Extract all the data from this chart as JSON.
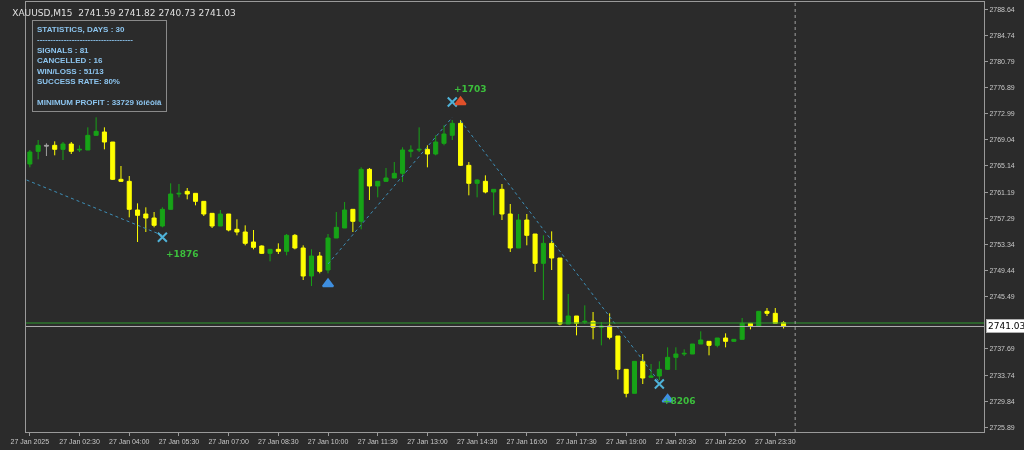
{
  "chart_data": {
    "type": "candlestick",
    "title": "XAUUSD,M15  2741.59 2741.82 2740.73 2741.03",
    "x": [
      "2025-01-27T01:00",
      "2025-01-27T01:15",
      "2025-01-27T01:30",
      "2025-01-27T01:45",
      "2025-01-27T02:00",
      "2025-01-27T02:15",
      "2025-01-27T02:30",
      "2025-01-27T02:45",
      "2025-01-27T03:00",
      "2025-01-27T03:15",
      "2025-01-27T03:30",
      "2025-01-27T03:45",
      "2025-01-27T04:00",
      "2025-01-27T04:15",
      "2025-01-27T04:30",
      "2025-01-27T04:45",
      "2025-01-27T05:00",
      "2025-01-27T05:15",
      "2025-01-27T05:30",
      "2025-01-27T05:45",
      "2025-01-27T06:00",
      "2025-01-27T06:15",
      "2025-01-27T06:30",
      "2025-01-27T06:45",
      "2025-01-27T07:00",
      "2025-01-27T07:15",
      "2025-01-27T07:30",
      "2025-01-27T07:45",
      "2025-01-27T08:00",
      "2025-01-27T08:15",
      "2025-01-27T08:30",
      "2025-01-27T08:45",
      "2025-01-27T09:00",
      "2025-01-27T09:15",
      "2025-01-27T09:30",
      "2025-01-27T09:45",
      "2025-01-27T10:00",
      "2025-01-27T10:15",
      "2025-01-27T10:30",
      "2025-01-27T10:45",
      "2025-01-27T11:00",
      "2025-01-27T11:15",
      "2025-01-27T11:30",
      "2025-01-27T11:45",
      "2025-01-27T12:00",
      "2025-01-27T12:15",
      "2025-01-27T12:30",
      "2025-01-27T12:45",
      "2025-01-27T13:00",
      "2025-01-27T13:15",
      "2025-01-27T13:30",
      "2025-01-27T13:45",
      "2025-01-27T14:00",
      "2025-01-27T14:15",
      "2025-01-27T14:30",
      "2025-01-27T14:45",
      "2025-01-27T15:00",
      "2025-01-27T15:15",
      "2025-01-27T15:30",
      "2025-01-27T15:45",
      "2025-01-27T16:00",
      "2025-01-27T16:15",
      "2025-01-27T16:30",
      "2025-01-27T16:45",
      "2025-01-27T17:00",
      "2025-01-27T17:15",
      "2025-01-27T17:30",
      "2025-01-27T17:45",
      "2025-01-27T18:00",
      "2025-01-27T18:15",
      "2025-01-27T18:30",
      "2025-01-27T18:45",
      "2025-01-27T19:00",
      "2025-01-27T19:15",
      "2025-01-27T19:30",
      "2025-01-27T19:45",
      "2025-01-27T20:00",
      "2025-01-27T20:15",
      "2025-01-27T20:30",
      "2025-01-27T20:45",
      "2025-01-27T21:00",
      "2025-01-27T21:15",
      "2025-01-27T21:30",
      "2025-01-27T21:45",
      "2025-01-27T22:00",
      "2025-01-27T22:15",
      "2025-01-27T22:30",
      "2025-01-27T22:45",
      "2025-01-27T23:00",
      "2025-01-27T23:15",
      "2025-01-27T23:30",
      "2025-01-27T23:45"
    ],
    "colors": [
      "#17a317",
      "#17a317",
      "#a0a0a0",
      "#ffff00",
      "#17a317",
      "#ffff00",
      "#17a317",
      "#17a317",
      "#17a317",
      "#ffff00",
      "#ffff00",
      "#ffff00",
      "#ffff00",
      "#ffff00",
      "#ffff00",
      "#ffff00",
      "#17a317",
      "#17a317",
      "#17a317",
      "#ffff00",
      "#ffff00",
      "#ffff00",
      "#ffff00",
      "#17a317",
      "#ffff00",
      "#ffff00",
      "#ffff00",
      "#ffff00",
      "#ffff00",
      "#17a317",
      "#ffff00",
      "#17a317",
      "#ffff00",
      "#ffff00",
      "#17a317",
      "#ffff00",
      "#17a317",
      "#17a317",
      "#17a317",
      "#ffff00",
      "#17a317",
      "#ffff00",
      "#17a317",
      "#17a317",
      "#17a317",
      "#17a317",
      "#17a317",
      "#17a317",
      "#ffff00",
      "#17a317",
      "#17a317",
      "#17a317",
      "#ffff00",
      "#ffff00",
      "#17a317",
      "#ffff00",
      "#17a317",
      "#ffff00",
      "#ffff00",
      "#17a317",
      "#ffff00",
      "#ffff00",
      "#17a317",
      "#ffff00",
      "#ffff00",
      "#17a317",
      "#ffff00",
      "#17a317",
      "#ffff00",
      "#17a317",
      "#ffff00",
      "#ffff00",
      "#ffff00",
      "#17a317",
      "#ffff00",
      "#17a317",
      "#17a317",
      "#17a317",
      "#17a317",
      "#17a317",
      "#17a317",
      "#17a317",
      "#ffff00",
      "#17a317",
      "#ffff00",
      "#17a317",
      "#17a317",
      "#ffff00",
      "#17a317",
      "#ffff00",
      "#ffff00",
      "#ffff00"
    ],
    "ohlc": [
      [
        2765.4,
        2767.5,
        2764.9,
        2767.2
      ],
      [
        2767.3,
        2769.0,
        2766.1,
        2768.2
      ],
      [
        2768.2,
        2768.5,
        2766.6,
        2768.1
      ],
      [
        2768.2,
        2768.8,
        2766.7,
        2767.6
      ],
      [
        2767.6,
        2768.7,
        2766.0,
        2768.4
      ],
      [
        2768.4,
        2768.7,
        2766.9,
        2767.3
      ],
      [
        2767.5,
        2768.2,
        2767.2,
        2767.6
      ],
      [
        2767.5,
        2770.9,
        2767.5,
        2769.7
      ],
      [
        2769.7,
        2772.4,
        2769.7,
        2770.3
      ],
      [
        2770.2,
        2770.9,
        2767.6,
        2768.7
      ],
      [
        2768.7,
        2768.7,
        2763.0,
        2763.1
      ],
      [
        2763.1,
        2765.1,
        2762.7,
        2762.8
      ],
      [
        2762.8,
        2763.6,
        2757.4,
        2758.6
      ],
      [
        2758.5,
        2759.5,
        2753.7,
        2757.7
      ],
      [
        2757.9,
        2758.9,
        2755.2,
        2757.3
      ],
      [
        2757.3,
        2758.2,
        2755.9,
        2756.2
      ],
      [
        2756.1,
        2758.9,
        2755.9,
        2758.6
      ],
      [
        2758.6,
        2762.5,
        2758.6,
        2760.9
      ],
      [
        2760.9,
        2762.4,
        2760.4,
        2761.0
      ],
      [
        2761.3,
        2761.8,
        2760.1,
        2760.9
      ],
      [
        2761.0,
        2761.0,
        2759.2,
        2759.8
      ],
      [
        2759.8,
        2759.8,
        2757.6,
        2757.9
      ],
      [
        2758.0,
        2758.0,
        2755.8,
        2756.1
      ],
      [
        2756.1,
        2758.5,
        2756.1,
        2757.9
      ],
      [
        2757.9,
        2757.9,
        2755.3,
        2755.5
      ],
      [
        2755.6,
        2757.1,
        2754.7,
        2755.2
      ],
      [
        2755.2,
        2756.2,
        2753.2,
        2753.5
      ],
      [
        2753.7,
        2755.5,
        2752.6,
        2752.9
      ],
      [
        2753.1,
        2753.2,
        2751.9,
        2752.0
      ],
      [
        2752.0,
        2752.6,
        2750.8,
        2752.6
      ],
      [
        2752.6,
        2753.5,
        2751.9,
        2752.3
      ],
      [
        2752.3,
        2754.9,
        2751.7,
        2754.7
      ],
      [
        2754.7,
        2754.9,
        2752.6,
        2752.8
      ],
      [
        2752.8,
        2753.2,
        2748.0,
        2748.6
      ],
      [
        2748.6,
        2752.6,
        2747.1,
        2751.6
      ],
      [
        2751.6,
        2752.2,
        2749.0,
        2749.3
      ],
      [
        2749.5,
        2754.9,
        2749.0,
        2754.3
      ],
      [
        2754.3,
        2758.2,
        2754.3,
        2755.9
      ],
      [
        2755.8,
        2759.7,
        2755.8,
        2758.5
      ],
      [
        2758.6,
        2758.6,
        2755.2,
        2756.8
      ],
      [
        2756.8,
        2764.9,
        2755.6,
        2764.6
      ],
      [
        2764.6,
        2764.8,
        2760.0,
        2762.1
      ],
      [
        2762.1,
        2762.8,
        2760.4,
        2762.8
      ],
      [
        2762.8,
        2764.8,
        2762.7,
        2763.3
      ],
      [
        2763.3,
        2765.7,
        2763.3,
        2764.0
      ],
      [
        2764.0,
        2767.9,
        2762.7,
        2767.5
      ],
      [
        2767.3,
        2768.2,
        2766.4,
        2767.5
      ],
      [
        2767.5,
        2770.9,
        2767.2,
        2767.6
      ],
      [
        2767.6,
        2768.2,
        2764.9,
        2766.9
      ],
      [
        2766.9,
        2769.7,
        2766.7,
        2768.7
      ],
      [
        2768.5,
        2771.2,
        2768.2,
        2769.9
      ],
      [
        2769.7,
        2772.0,
        2769.0,
        2771.5
      ],
      [
        2771.5,
        2772.0,
        2765.1,
        2765.2
      ],
      [
        2765.2,
        2765.7,
        2760.7,
        2762.5
      ],
      [
        2762.5,
        2763.1,
        2760.4,
        2763.0
      ],
      [
        2762.8,
        2763.7,
        2761.0,
        2761.2
      ],
      [
        2761.2,
        2761.6,
        2757.7,
        2761.6
      ],
      [
        2761.6,
        2762.4,
        2757.0,
        2757.9
      ],
      [
        2757.9,
        2759.4,
        2752.2,
        2752.8
      ],
      [
        2752.8,
        2757.9,
        2752.8,
        2757.0
      ],
      [
        2757.0,
        2757.9,
        2753.2,
        2754.7
      ],
      [
        2754.9,
        2754.9,
        2749.2,
        2750.5
      ],
      [
        2750.5,
        2754.7,
        2745.0,
        2753.5
      ],
      [
        2753.5,
        2755.3,
        2749.5,
        2751.3
      ],
      [
        2751.3,
        2751.3,
        2741.2,
        2741.4
      ],
      [
        2741.4,
        2745.9,
        2741.4,
        2742.6
      ],
      [
        2742.6,
        2742.6,
        2739.7,
        2741.5
      ],
      [
        2741.7,
        2744.2,
        2741.4,
        2741.8
      ],
      [
        2741.8,
        2743.2,
        2739.1,
        2740.9
      ],
      [
        2740.9,
        2741.7,
        2738.2,
        2741.1
      ],
      [
        2741.1,
        2743.0,
        2739.1,
        2739.4
      ],
      [
        2739.6,
        2739.6,
        2733.1,
        2734.6
      ],
      [
        2734.6,
        2734.6,
        2730.4,
        2731.0
      ],
      [
        2731.0,
        2735.8,
        2731.0,
        2735.8
      ],
      [
        2735.8,
        2736.9,
        2732.4,
        2733.3
      ],
      [
        2733.4,
        2735.4,
        2733.4,
        2733.6
      ],
      [
        2733.6,
        2735.8,
        2733.0,
        2734.6
      ],
      [
        2734.6,
        2737.9,
        2734.5,
        2736.4
      ],
      [
        2736.4,
        2737.9,
        2734.5,
        2736.9
      ],
      [
        2736.9,
        2737.6,
        2736.6,
        2737.0
      ],
      [
        2736.9,
        2738.4,
        2736.9,
        2738.4
      ],
      [
        2738.4,
        2740.3,
        2738.4,
        2739.0
      ],
      [
        2738.8,
        2738.8,
        2736.7,
        2738.2
      ],
      [
        2738.2,
        2739.3,
        2737.9,
        2739.3
      ],
      [
        2739.3,
        2740.0,
        2737.9,
        2738.8
      ],
      [
        2738.8,
        2739.1,
        2738.7,
        2739.1
      ],
      [
        2739.1,
        2742.3,
        2739.1,
        2741.5
      ],
      [
        2741.5,
        2741.5,
        2740.6,
        2741.1
      ],
      [
        2741.1,
        2743.3,
        2741.1,
        2743.3
      ],
      [
        2743.3,
        2743.8,
        2742.6,
        2743.0
      ],
      [
        2743.0,
        2743.8,
        2741.5,
        2741.5
      ],
      [
        2741.59,
        2741.82,
        2740.73,
        2741.03
      ]
    ],
    "series": [
      {
        "type": "line",
        "color": "#3d8fb8",
        "line_style": "dotted",
        "x": [
          "2025-01-27T00:54",
          "2025-01-27T05:00"
        ],
        "values": [
          2763.0,
          2754.7
        ]
      },
      {
        "type": "line",
        "color": "#3d8fb8",
        "line_style": "dotted",
        "x": [
          "2025-01-27T10:00",
          "2025-01-27T13:45"
        ],
        "values": [
          2750.4,
          2772.4
        ]
      },
      {
        "type": "line",
        "color": "#3d8fb8",
        "line_style": "dotted",
        "x": [
          "2025-01-27T14:00",
          "2025-01-27T20:00"
        ],
        "values": [
          2771.9,
          2732.7
        ]
      },
      {
        "type": "scatter",
        "color": "#4fb3d9",
        "marker": "cross",
        "x": [
          "2025-01-27T05:00",
          "2025-01-27T13:45",
          "2025-01-27T20:00"
        ],
        "values": [
          2754.4,
          2774.7,
          2732.4
        ]
      },
      {
        "type": "scatter",
        "color": "#3f8fe0",
        "marker": "triangle",
        "x": [
          "2025-01-27T10:00",
          "2025-01-27T20:15"
        ],
        "values": [
          2747.4,
          2730.1
        ]
      },
      {
        "type": "scatter",
        "color": "#e0502a",
        "marker": "triangle",
        "x": [
          "2025-01-27T14:00"
        ],
        "values": [
          2774.7
        ]
      }
    ],
    "annotations": [
      "STATISTICS, DAYS : 30",
      "------------------------------------",
      "SIGNALS : 81",
      "CANCELLED : 16",
      "WIN/LOSS : 51/13",
      "SUCCESS RATE: 80%",
      "MINIMUM PROFIT : 33729 ïóíêòîâ",
      {
        "text": "+1876",
        "x": "2025-01-27T05:00",
        "y": 2754.4
      },
      {
        "text": "+1703",
        "x": "2025-01-27T13:45",
        "y": 2774.7
      },
      {
        "text": "+8206",
        "x": "2025-01-27T20:00",
        "y": 2732.4
      }
    ],
    "ref_lines": [
      {
        "axis": "y",
        "value": 2741.55,
        "color": "#2e9a2e"
      },
      {
        "axis": "y",
        "value": 2741.03,
        "label": "2741.03",
        "color": "#b0b0b0"
      },
      {
        "axis": "x",
        "value": "2025-01-28T00:06",
        "color": "#a0a0a0",
        "line_style": "dotted"
      }
    ],
    "xlim": [
      "2025-01-27T00:53",
      "2025-01-28T05:48"
    ],
    "xticks": [
      {
        "value": "2025-01-27T01:00",
        "label": "27 Jan 2025"
      },
      {
        "value": "2025-01-27T02:30",
        "label": "27 Jan 02:30"
      },
      {
        "value": "2025-01-27T04:00",
        "label": "27 Jan 04:00"
      },
      {
        "value": "2025-01-27T05:30",
        "label": "27 Jan 05:30"
      },
      {
        "value": "2025-01-27T07:00",
        "label": "27 Jan 07:00"
      },
      {
        "value": "2025-01-27T08:30",
        "label": "27 Jan 08:30"
      },
      {
        "value": "2025-01-27T10:00",
        "label": "27 Jan 10:00"
      },
      {
        "value": "2025-01-27T11:30",
        "label": "27 Jan 11:30"
      },
      {
        "value": "2025-01-27T13:00",
        "label": "27 Jan 13:00"
      },
      {
        "value": "2025-01-27T14:30",
        "label": "27 Jan 14:30"
      },
      {
        "value": "2025-01-27T16:00",
        "label": "27 Jan 16:00"
      },
      {
        "value": "2025-01-27T17:30",
        "label": "27 Jan 17:30"
      },
      {
        "value": "2025-01-27T19:00",
        "label": "27 Jan 19:00"
      },
      {
        "value": "2025-01-27T20:30",
        "label": "27 Jan 20:30"
      },
      {
        "value": "2025-01-27T22:00",
        "label": "27 Jan 22:00"
      },
      {
        "value": "2025-01-27T23:30",
        "label": "27 Jan 23:30"
      }
    ],
    "ylim": [
      2725.2,
      2789.7
    ],
    "yticks": [
      2788.64,
      2784.74,
      2780.79,
      2776.89,
      2772.99,
      2769.04,
      2765.14,
      2761.19,
      2757.29,
      2753.34,
      2749.44,
      2745.49,
      2737.69,
      2733.74,
      2729.84,
      2725.89
    ]
  }
}
